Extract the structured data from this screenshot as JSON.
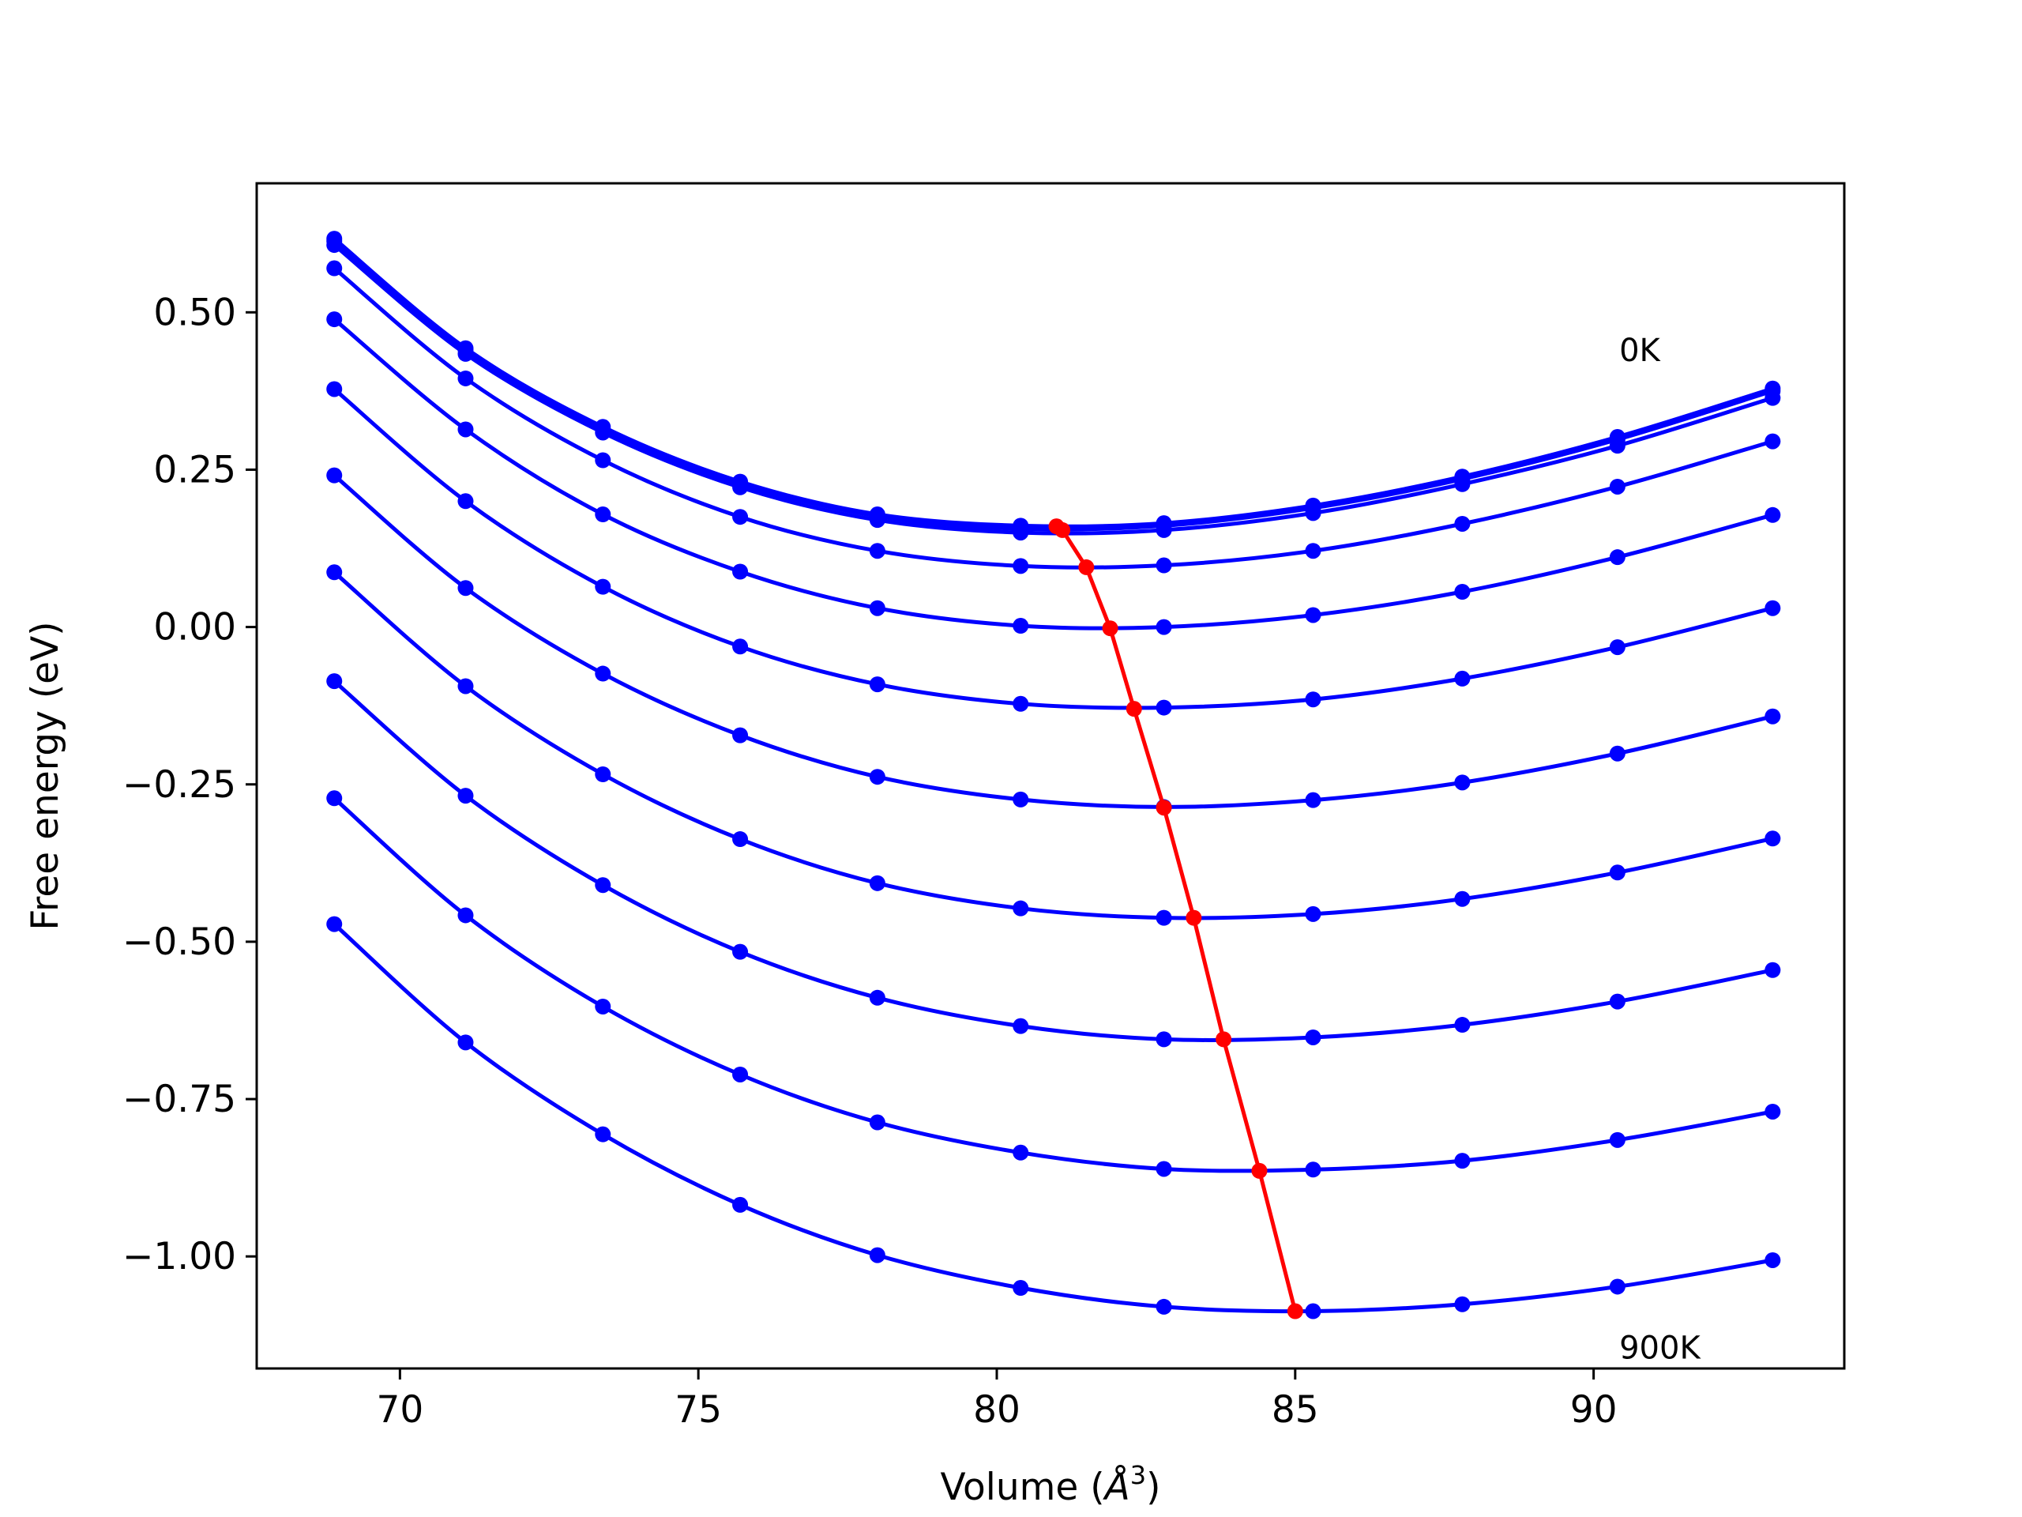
{
  "chart_data": {
    "type": "line",
    "title": "",
    "xlabel": "Volume (",
    "xlabel_unit": "Å",
    "xlabel_exp": "3",
    "xlabel_close": ")",
    "ylabel": "Free energy (eV)",
    "xlim": [
      67.6,
      94.2
    ],
    "ylim": [
      -1.178,
      0.705
    ],
    "xticks": [
      70,
      75,
      80,
      85,
      90
    ],
    "xtick_labels": [
      "70",
      "75",
      "80",
      "85",
      "90"
    ],
    "yticks": [
      0.5,
      0.25,
      0.0,
      -0.25,
      -0.5,
      -0.75,
      -1.0
    ],
    "ytick_labels": [
      "0.50",
      "0.25",
      "0.00",
      "−0.25",
      "−0.50",
      "−0.75",
      "−1.00"
    ],
    "annotations": [
      {
        "text": "0K",
        "x": 90.43,
        "y": 0.44
      },
      {
        "text": "900K",
        "x": 90.43,
        "y": -1.145
      }
    ],
    "colors": {
      "series": "#0000ff",
      "minimum": "#ff0000"
    },
    "x": [
      68.9,
      71.1,
      73.4,
      75.7,
      78.0,
      80.4,
      82.8,
      85.3,
      87.8,
      90.4,
      93.0
    ],
    "series": [
      {
        "y": [
          0.617,
          0.443,
          0.318,
          0.231,
          0.179,
          0.161,
          0.165,
          0.193,
          0.239,
          0.302,
          0.379
        ]
      },
      {
        "y": [
          0.613,
          0.44,
          0.314,
          0.228,
          0.176,
          0.156,
          0.161,
          0.189,
          0.235,
          0.298,
          0.375
        ]
      },
      {
        "y": [
          0.607,
          0.434,
          0.309,
          0.222,
          0.17,
          0.15,
          0.154,
          0.181,
          0.227,
          0.288,
          0.364
        ]
      },
      {
        "y": [
          0.57,
          0.395,
          0.265,
          0.175,
          0.121,
          0.097,
          0.098,
          0.121,
          0.164,
          0.223,
          0.295
        ]
      },
      {
        "y": [
          0.489,
          0.314,
          0.179,
          0.088,
          0.03,
          0.002,
          0.0,
          0.019,
          0.056,
          0.111,
          0.178
        ]
      },
      {
        "y": [
          0.378,
          0.2,
          0.064,
          -0.031,
          -0.091,
          -0.122,
          -0.128,
          -0.115,
          -0.082,
          -0.032,
          0.03
        ]
      },
      {
        "y": [
          0.241,
          0.062,
          -0.074,
          -0.172,
          -0.238,
          -0.274,
          -0.286,
          -0.275,
          -0.247,
          -0.201,
          -0.142
        ]
      },
      {
        "y": [
          0.087,
          -0.094,
          -0.234,
          -0.337,
          -0.407,
          -0.447,
          -0.462,
          -0.456,
          -0.432,
          -0.39,
          -0.336
        ]
      },
      {
        "y": [
          -0.086,
          -0.268,
          -0.41,
          -0.516,
          -0.589,
          -0.634,
          -0.655,
          -0.652,
          -0.632,
          -0.595,
          -0.545
        ]
      },
      {
        "y": [
          -0.272,
          -0.458,
          -0.603,
          -0.711,
          -0.787,
          -0.835,
          -0.861,
          -0.862,
          -0.848,
          -0.815,
          -0.77
        ]
      },
      {
        "y": [
          -0.472,
          -0.66,
          -0.806,
          -0.918,
          -0.998,
          -1.05,
          -1.08,
          -1.087,
          -1.076,
          -1.048,
          -1.006
        ]
      }
    ],
    "minimum_line": {
      "x": [
        81.0,
        81.1,
        81.5,
        81.9,
        82.3,
        82.8,
        83.3,
        83.8,
        84.4,
        85.0
      ],
      "y": [
        0.16,
        0.154,
        0.095,
        -0.002,
        -0.13,
        -0.287,
        -0.462,
        -0.655,
        -0.864,
        -1.087
      ]
    }
  }
}
